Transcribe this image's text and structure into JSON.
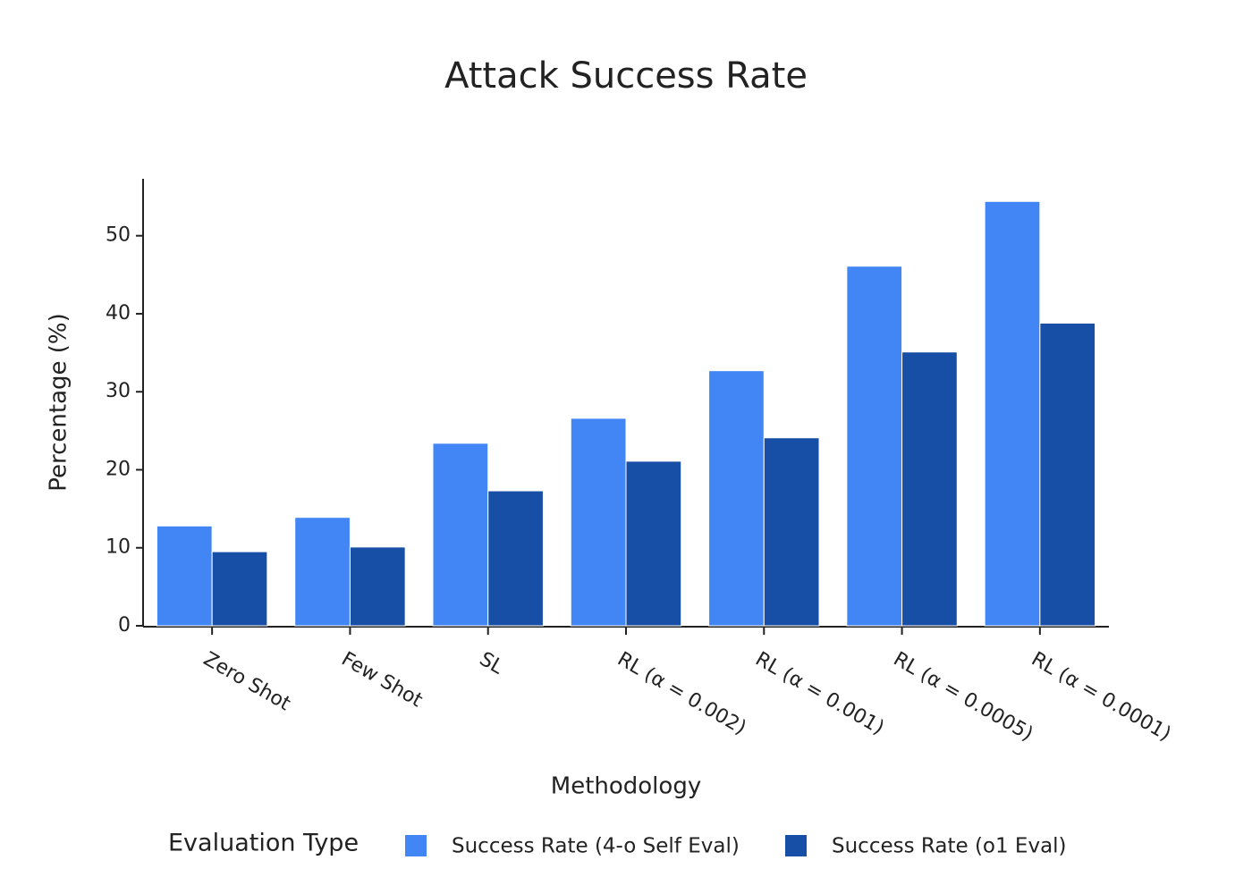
{
  "chart_data": {
    "type": "bar",
    "title": "Attack Success Rate",
    "x_label": "Methodology",
    "y_label": "Percentage (%)",
    "categories": [
      "Zero Shot",
      "Few Shot",
      "SL",
      "RL (α = 0.002)",
      "RL (α = 0.001)",
      "RL (α = 0.0005)",
      "RL (α = 0.0001)"
    ],
    "series": [
      {
        "name": "Success Rate (4-o Self Eval)",
        "color": "#4285f4",
        "values": [
          12.8,
          13.9,
          23.4,
          26.6,
          32.7,
          46.1,
          54.4
        ]
      },
      {
        "name": "Success Rate (o1 Eval)",
        "color": "#174ea6",
        "values": [
          9.5,
          10.1,
          17.3,
          21.1,
          24.1,
          35.1,
          38.8
        ]
      }
    ],
    "ylim": [
      0,
      57.3
    ],
    "yticks": [
      0,
      10,
      20,
      30,
      40,
      50
    ],
    "grid": false,
    "legend_title": "Evaluation Type",
    "legend_position": "bottom"
  }
}
